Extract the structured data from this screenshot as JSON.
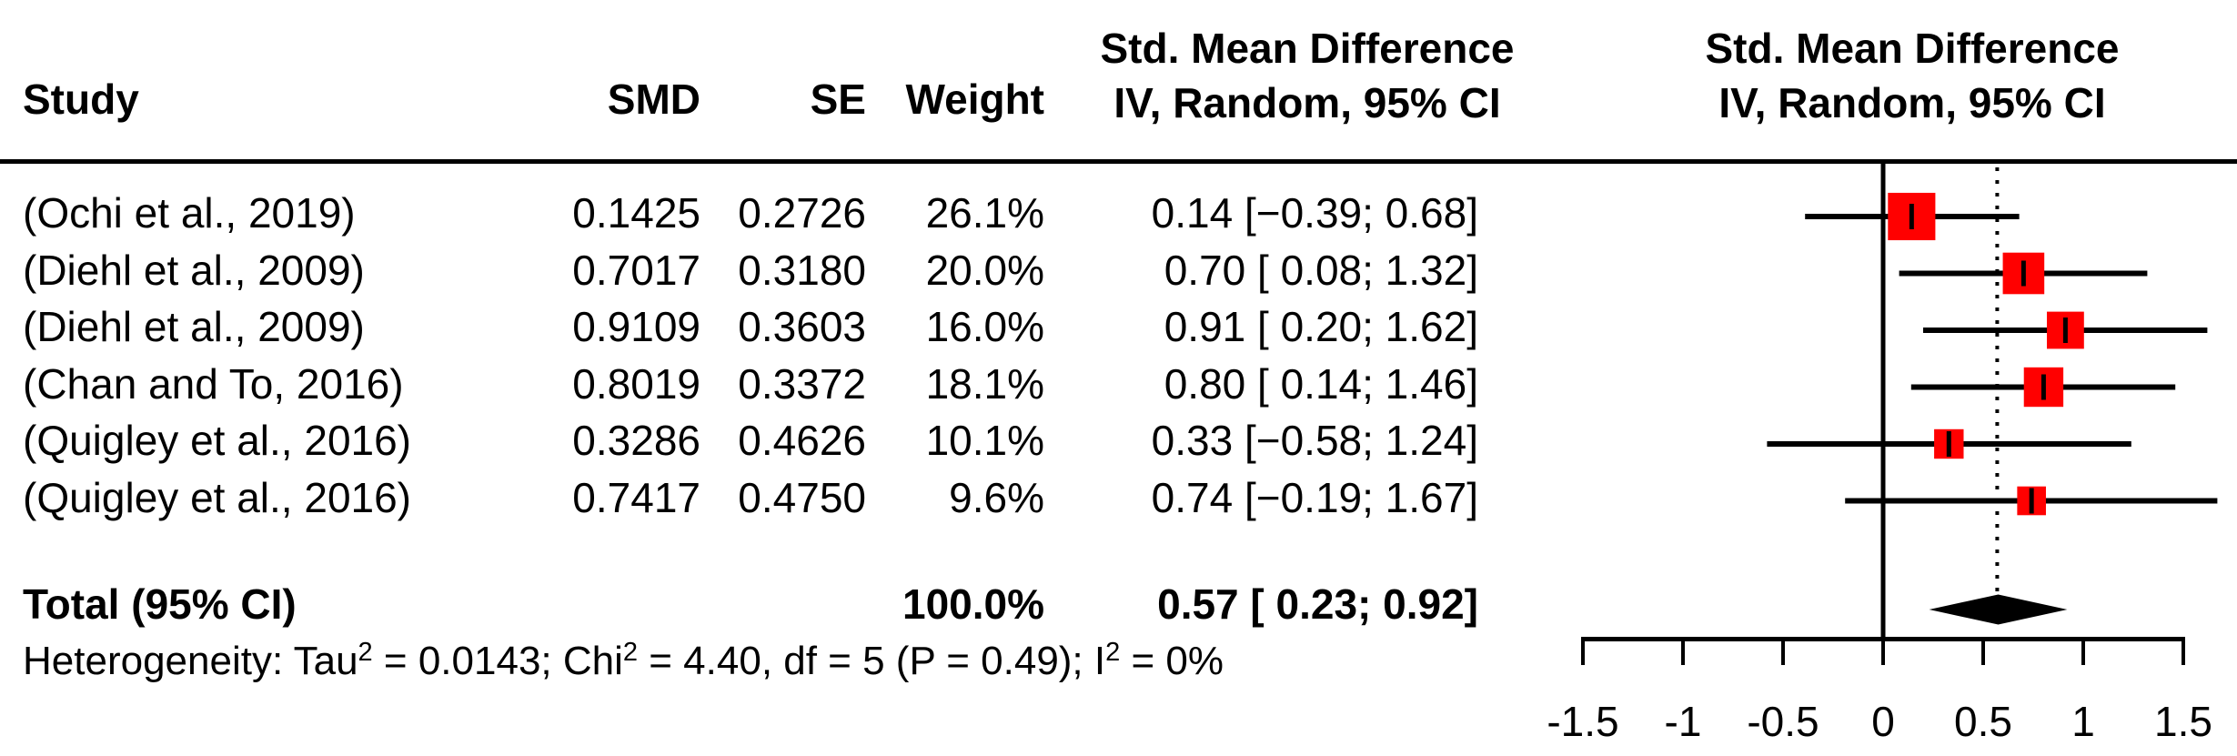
{
  "headers": {
    "study": "Study",
    "smd": "SMD",
    "se": "SE",
    "weight": "Weight",
    "effect_col_line1": "Std. Mean Difference",
    "effect_col_line2": "IV, Random, 95% CI",
    "plot_col_line1": "Std. Mean Difference",
    "plot_col_line2": "IV, Random, 95% CI"
  },
  "chart_data": {
    "type": "forest",
    "studies": [
      {
        "label": "(Ochi et al., 2019)",
        "smd": "0.1425",
        "se": "0.2726",
        "weight": "26.1%",
        "weight_pct": 26.1,
        "ci_text": "0.14 [−0.39; 0.68]",
        "est": 0.1425,
        "low": -0.39,
        "high": 0.68
      },
      {
        "label": "(Diehl et al., 2009)",
        "smd": "0.7017",
        "se": "0.3180",
        "weight": "20.0%",
        "weight_pct": 20.0,
        "ci_text": "0.70 [ 0.08; 1.32]",
        "est": 0.7017,
        "low": 0.08,
        "high": 1.32
      },
      {
        "label": "(Diehl et al., 2009)",
        "smd": "0.9109",
        "se": "0.3603",
        "weight": "16.0%",
        "weight_pct": 16.0,
        "ci_text": "0.91 [ 0.20; 1.62]",
        "est": 0.9109,
        "low": 0.2,
        "high": 1.62
      },
      {
        "label": "(Chan and To, 2016)",
        "smd": "0.8019",
        "se": "0.3372",
        "weight": "18.1%",
        "weight_pct": 18.1,
        "ci_text": "0.80 [ 0.14; 1.46]",
        "est": 0.8019,
        "low": 0.14,
        "high": 1.46
      },
      {
        "label": "(Quigley et al., 2016)",
        "smd": "0.3286",
        "se": "0.4626",
        "weight": "10.1%",
        "weight_pct": 10.1,
        "ci_text": "0.33 [−0.58; 1.24]",
        "est": 0.3286,
        "low": -0.58,
        "high": 1.24
      },
      {
        "label": "(Quigley et al., 2016)",
        "smd": "0.7417",
        "se": "0.4750",
        "weight": "9.6%",
        "weight_pct": 9.6,
        "ci_text": "0.74 [−0.19; 1.67]",
        "est": 0.7417,
        "low": -0.19,
        "high": 1.67
      }
    ],
    "total": {
      "label": "Total (95% CI)",
      "weight": "100.0%",
      "ci_text": "0.57 [ 0.23; 0.92]",
      "est": 0.57,
      "low": 0.23,
      "high": 0.92
    },
    "heterogeneity": {
      "segments": [
        {
          "text": "Heterogeneity: Tau"
        },
        {
          "text": "2",
          "sup": true
        },
        {
          "text": " = 0.0143; Chi"
        },
        {
          "text": "2",
          "sup": true
        },
        {
          "text": " = 4.40, df = 5 (P = 0.49); I"
        },
        {
          "text": "2",
          "sup": true
        },
        {
          "text": " = 0%"
        }
      ]
    },
    "axis": {
      "xlim": [
        -1.5,
        1.5
      ],
      "ticks": [
        -1.5,
        -1,
        -0.5,
        0,
        0.5,
        1,
        1.5
      ],
      "tick_labels": [
        "-1.5",
        "-1",
        "-0.5",
        "0",
        "0.5",
        "1",
        "1.5"
      ],
      "zero_line": 0,
      "pooled_line": 0.57
    },
    "colors": {
      "square": "#ff0000",
      "line": "#000000",
      "diamond": "#000000"
    }
  }
}
